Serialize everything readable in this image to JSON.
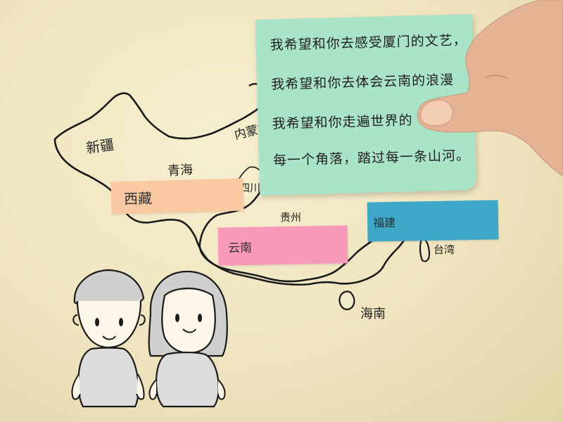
{
  "map": {
    "regions": [
      {
        "id": "xinjiang",
        "label": "新疆"
      },
      {
        "id": "qinghai",
        "label": "青海"
      },
      {
        "id": "neimenggu",
        "label": "内蒙古"
      },
      {
        "id": "sichuan",
        "label": "四川"
      },
      {
        "id": "guizhou",
        "label": "贵州"
      },
      {
        "id": "taiwan",
        "label": "台湾"
      },
      {
        "id": "hainan",
        "label": "海南"
      }
    ],
    "sticky_labels": {
      "xizang": "西藏",
      "yunnan": "云南",
      "fujian": "福建"
    }
  },
  "note": {
    "lines": [
      "我希望和你去感受厦门的文艺，",
      "我希望和你去体会云南的浪漫",
      "我希望和你走遍世界的",
      "每一个角落，踏过每一条山河。"
    ]
  },
  "colors": {
    "paper": "#f3eacb",
    "note_green": "#a9e3c8",
    "sticky_orange": "#f9c9a2",
    "sticky_pink": "#f79ab9",
    "sticky_blue": "#3fa8c9",
    "ink": "#1a1a1a"
  }
}
